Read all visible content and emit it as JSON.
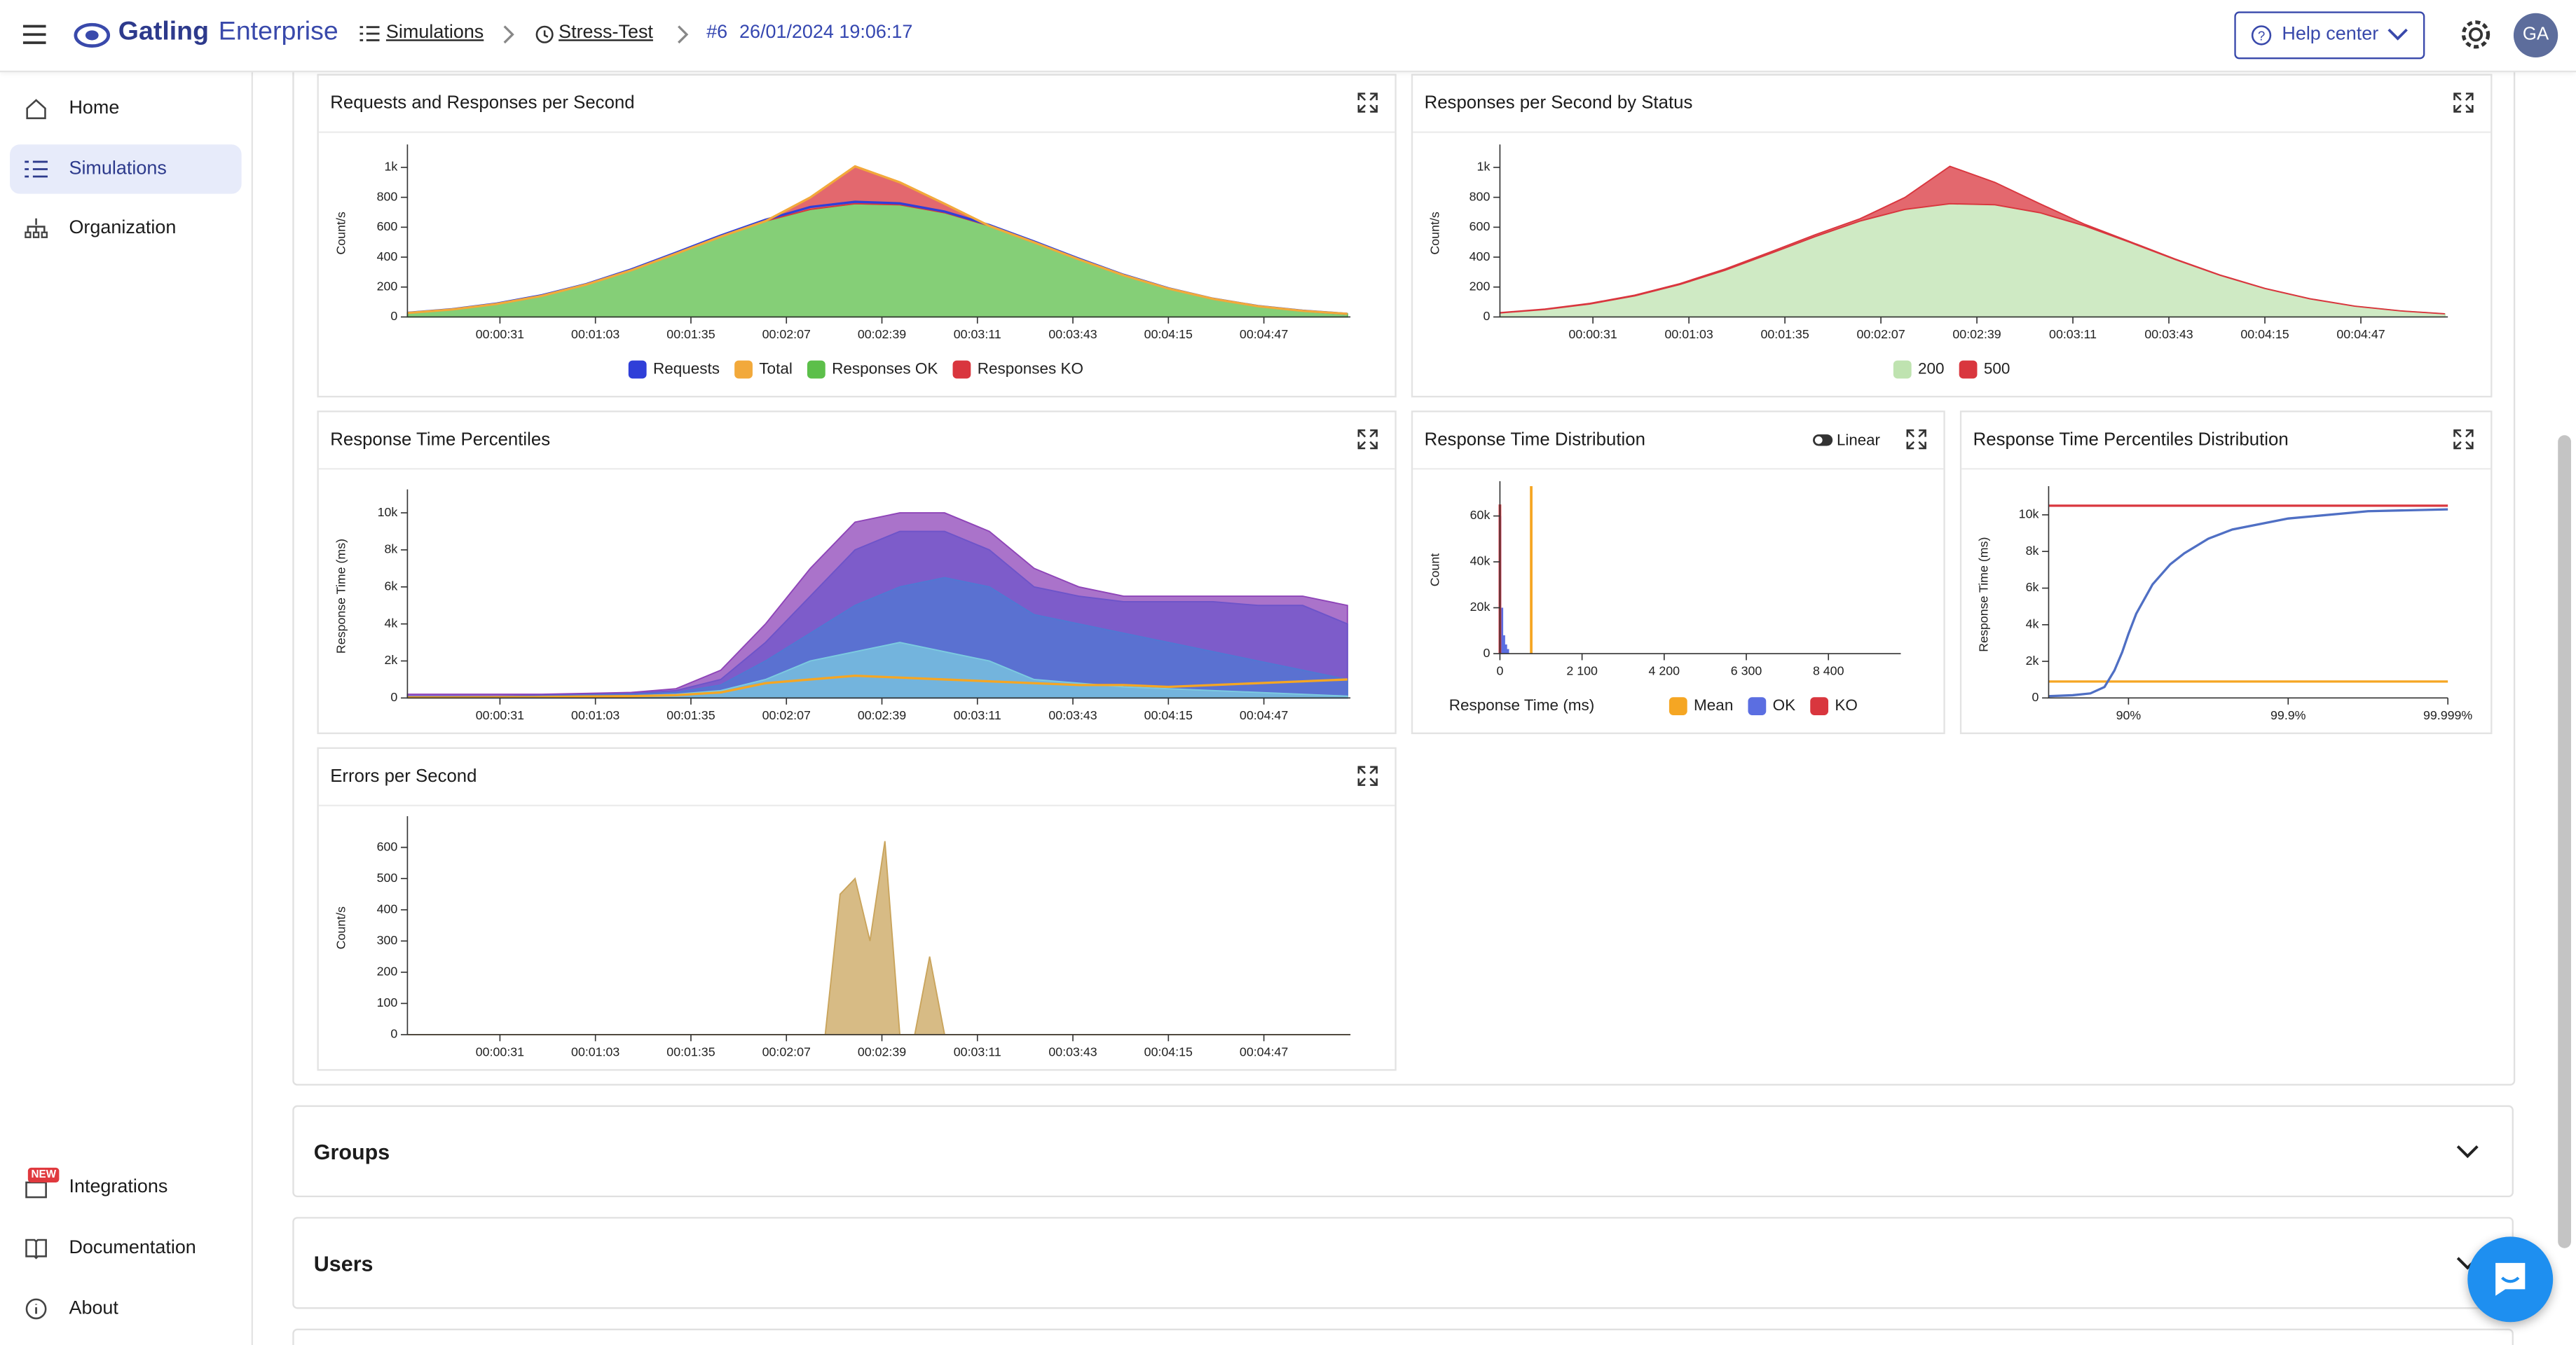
{
  "ui": {
    "header": {
      "brand_name": "Gatling",
      "brand_product": "Enterprise",
      "breadcrumb_simulations": "Simulations",
      "breadcrumb_test": "Stress-Test",
      "run": "#6",
      "run_date": "26/01/2024 19:06:17",
      "help": "Help center",
      "avatar": "GA"
    },
    "sidebar": {
      "home": "Home",
      "simulations": "Simulations",
      "organization": "Organization",
      "badge": "NEW",
      "integrations": "Integrations",
      "documentation": "Documentation",
      "about": "About"
    },
    "toggle": "Linear",
    "sections": [
      "Groups",
      "Users"
    ]
  },
  "chart_data": [
    {
      "type": "area",
      "title": "Requests and Responses per Second",
      "ylabel": "Count/s",
      "x": [
        0,
        15,
        30,
        45,
        60,
        75,
        90,
        105,
        120,
        135,
        150,
        165,
        180,
        195,
        210,
        225,
        240,
        255,
        270,
        285,
        300,
        315
      ],
      "xlim": [
        0,
        316
      ],
      "xticks": [
        {
          "value": 31,
          "label": "00:00:31"
        },
        {
          "value": 63,
          "label": "00:01:03"
        },
        {
          "value": 95,
          "label": "00:01:35"
        },
        {
          "value": 127,
          "label": "00:02:07"
        },
        {
          "value": 159,
          "label": "00:02:39"
        },
        {
          "value": 191,
          "label": "00:03:11"
        },
        {
          "value": 223,
          "label": "00:03:43"
        },
        {
          "value": 255,
          "label": "00:04:15"
        },
        {
          "value": 287,
          "label": "00:04:47"
        }
      ],
      "ylim": [
        0,
        1120
      ],
      "yticks": [
        0,
        200,
        400,
        600,
        800,
        {
          "value": 1000,
          "label": "1k"
        }
      ],
      "series": [
        {
          "name": "Requests",
          "color": "#2f3fd8",
          "style": "line",
          "values": [
            28,
            52,
            90,
            145,
            220,
            318,
            430,
            545,
            650,
            735,
            770,
            760,
            705,
            615,
            505,
            390,
            282,
            192,
            122,
            73,
            42,
            21
          ]
        },
        {
          "name": "Total",
          "color": "#f2a93b",
          "style": "line",
          "values": [
            27,
            50,
            87,
            141,
            217,
            312,
            423,
            537,
            641,
            799,
            1007,
            900,
            757,
            609,
            499,
            385,
            279,
            190,
            121,
            72,
            41,
            21
          ]
        },
        {
          "name": "Responses OK",
          "color": "#5cbf4a",
          "style": "area",
          "values": [
            27,
            50,
            87,
            141,
            217,
            312,
            423,
            537,
            641,
            719,
            757,
            750,
            697,
            609,
            499,
            385,
            279,
            190,
            121,
            72,
            41,
            21
          ]
        },
        {
          "name": "Responses KO",
          "color": "#d9363e",
          "style": "stacked-area",
          "values": [
            0,
            0,
            0,
            0,
            0,
            0,
            0,
            0,
            0,
            80,
            250,
            150,
            60,
            0,
            0,
            0,
            0,
            0,
            0,
            0,
            0,
            0
          ]
        }
      ]
    },
    {
      "type": "area",
      "title": "Responses per Second by Status",
      "ylabel": "Count/s",
      "x": [
        0,
        15,
        30,
        45,
        60,
        75,
        90,
        105,
        120,
        135,
        150,
        165,
        180,
        195,
        210,
        225,
        240,
        255,
        270,
        285,
        300,
        315
      ],
      "xlim": [
        0,
        316
      ],
      "xticks": [
        {
          "value": 31,
          "label": "00:00:31"
        },
        {
          "value": 63,
          "label": "00:01:03"
        },
        {
          "value": 95,
          "label": "00:01:35"
        },
        {
          "value": 127,
          "label": "00:02:07"
        },
        {
          "value": 159,
          "label": "00:02:39"
        },
        {
          "value": 191,
          "label": "00:03:11"
        },
        {
          "value": 223,
          "label": "00:03:43"
        },
        {
          "value": 255,
          "label": "00:04:15"
        },
        {
          "value": 287,
          "label": "00:04:47"
        }
      ],
      "ylim": [
        0,
        1120
      ],
      "yticks": [
        0,
        200,
        400,
        600,
        800,
        {
          "value": 1000,
          "label": "1k"
        }
      ],
      "series": [
        {
          "name": "200",
          "color": "#bfe3b0",
          "style": "area",
          "values": [
            27,
            50,
            87,
            141,
            217,
            312,
            423,
            537,
            641,
            719,
            757,
            750,
            697,
            609,
            499,
            385,
            279,
            190,
            121,
            72,
            41,
            21
          ]
        },
        {
          "name": "500",
          "color": "#d9363e",
          "style": "stacked-area",
          "values": [
            2,
            3,
            4,
            5,
            6,
            8,
            10,
            12,
            15,
            80,
            250,
            150,
            60,
            10,
            5,
            3,
            2,
            1,
            1,
            0,
            0,
            0
          ]
        }
      ]
    },
    {
      "type": "area",
      "title": "Response Time Percentiles",
      "ylabel": "Response Time (ms)",
      "x": [
        0,
        15,
        30,
        45,
        60,
        75,
        90,
        105,
        120,
        135,
        150,
        165,
        180,
        195,
        210,
        225,
        240,
        255,
        270,
        285,
        300,
        315
      ],
      "xlim": [
        0,
        316
      ],
      "xticks": [
        {
          "value": 31,
          "label": "00:00:31"
        },
        {
          "value": 63,
          "label": "00:01:03"
        },
        {
          "value": 95,
          "label": "00:01:35"
        },
        {
          "value": 127,
          "label": "00:02:07"
        },
        {
          "value": 159,
          "label": "00:02:39"
        },
        {
          "value": 191,
          "label": "00:03:11"
        },
        {
          "value": 223,
          "label": "00:03:43"
        },
        {
          "value": 255,
          "label": "00:04:15"
        },
        {
          "value": 287,
          "label": "00:04:47"
        }
      ],
      "ylim": [
        0,
        11000
      ],
      "yticks": [
        0,
        {
          "value": 2000,
          "label": "2k"
        },
        {
          "value": 4000,
          "label": "4k"
        },
        {
          "value": 6000,
          "label": "6k"
        },
        {
          "value": 8000,
          "label": "8k"
        },
        {
          "value": 10000,
          "label": "10k"
        }
      ],
      "series": [
        {
          "color": "#8e44b8",
          "style": "area",
          "values": [
            200,
            200,
            200,
            200,
            250,
            300,
            500,
            1500,
            4000,
            7000,
            9500,
            10000,
            10000,
            9000,
            7000,
            6000,
            5500,
            5500,
            5500,
            5500,
            5500,
            5000
          ]
        },
        {
          "color": "#6d54c9",
          "style": "area",
          "values": [
            100,
            100,
            100,
            150,
            200,
            250,
            400,
            1000,
            3000,
            5500,
            8000,
            9000,
            9000,
            8000,
            6000,
            5500,
            5200,
            5200,
            5200,
            5000,
            5000,
            4000
          ]
        },
        {
          "color": "#4f78d3",
          "style": "area",
          "values": [
            80,
            80,
            80,
            100,
            150,
            200,
            300,
            700,
            2000,
            3500,
            5000,
            6000,
            6500,
            6000,
            4500,
            4000,
            3500,
            3000,
            2500,
            2000,
            1500,
            1000
          ]
        },
        {
          "color": "#7ccbe0",
          "style": "area",
          "values": [
            50,
            50,
            50,
            80,
            100,
            120,
            200,
            400,
            1000,
            2000,
            2500,
            3000,
            2500,
            2000,
            1000,
            800,
            600,
            500,
            400,
            300,
            200,
            100
          ]
        },
        {
          "color": "#f5a623",
          "style": "line",
          "values": [
            30,
            30,
            40,
            50,
            80,
            100,
            150,
            300,
            800,
            1000,
            1200,
            1100,
            1000,
            900,
            800,
            700,
            700,
            600,
            700,
            800,
            900,
            1000
          ]
        }
      ]
    },
    {
      "type": "histogram",
      "title": "Response Time Distribution",
      "ylabel": "Count",
      "xlabel": "Response Time (ms)",
      "xlim": [
        0,
        10250
      ],
      "xticks": [
        0,
        {
          "value": 2100,
          "label": "2 100"
        },
        {
          "value": 4200,
          "label": "4 200"
        },
        {
          "value": 6300,
          "label": "6 300"
        },
        {
          "value": 8400,
          "label": "8 400"
        }
      ],
      "ylim": [
        0,
        73000
      ],
      "yticks": [
        0,
        {
          "value": 20000,
          "label": "20k"
        },
        {
          "value": 40000,
          "label": "40k"
        },
        {
          "value": 60000,
          "label": "60k"
        }
      ],
      "series": [
        {
          "name": "Mean",
          "color": "#f5a623",
          "x": [
            800
          ],
          "values": [
            73000
          ]
        },
        {
          "name": "OK",
          "color": "#5b6ee1",
          "x": [
            0,
            50,
            100,
            150,
            200
          ],
          "values": [
            60000,
            20000,
            8000,
            4000,
            2000
          ]
        },
        {
          "name": "KO",
          "color": "#d9363e",
          "x": [
            0
          ],
          "values": [
            65000
          ]
        }
      ]
    },
    {
      "type": "line",
      "title": "Response Time Percentiles Distribution",
      "ylabel": "Response Time (ms)",
      "xscale": "nines",
      "xlim": [
        0,
        99.999
      ],
      "xticks": [
        {
          "value": 90,
          "label": "90%"
        },
        {
          "value": 99.9,
          "label": "99.9%"
        },
        {
          "value": 99.999,
          "label": "99.999%"
        }
      ],
      "ylim": [
        0,
        11300
      ],
      "yticks": [
        0,
        {
          "value": 2000,
          "label": "2k"
        },
        {
          "value": 4000,
          "label": "4k"
        },
        {
          "value": 6000,
          "label": "6k"
        },
        {
          "value": 8000,
          "label": "8k"
        },
        {
          "value": 10000,
          "label": "10k"
        }
      ],
      "series": [
        {
          "color": "#d9363e",
          "style": "line",
          "x": [
            0,
            99.999
          ],
          "values": [
            10500,
            10500
          ]
        },
        {
          "color": "#f5a623",
          "style": "line",
          "x": [
            0,
            99.999
          ],
          "values": [
            900,
            900
          ]
        },
        {
          "color": "#4f6fc4",
          "style": "line",
          "x": [
            0,
            50,
            70,
            80,
            85,
            88,
            90,
            92,
            95,
            97,
            98,
            99,
            99.5,
            99.9,
            99.99,
            99.999
          ],
          "values": [
            100,
            150,
            250,
            600,
            1500,
            2500,
            3500,
            4600,
            6200,
            7300,
            7900,
            8700,
            9200,
            9800,
            10200,
            10300
          ]
        }
      ]
    },
    {
      "type": "area",
      "title": "Errors per Second",
      "ylabel": "Count/s",
      "x": [
        0,
        140,
        145,
        150,
        155,
        160,
        165,
        170,
        175,
        180,
        185,
        316
      ],
      "xlim": [
        0,
        316
      ],
      "xticks": [
        {
          "value": 31,
          "label": "00:00:31"
        },
        {
          "value": 63,
          "label": "00:01:03"
        },
        {
          "value": 95,
          "label": "00:01:35"
        },
        {
          "value": 127,
          "label": "00:02:07"
        },
        {
          "value": 159,
          "label": "00:02:39"
        },
        {
          "value": 191,
          "label": "00:03:11"
        },
        {
          "value": 223,
          "label": "00:03:43"
        },
        {
          "value": 255,
          "label": "00:04:15"
        },
        {
          "value": 287,
          "label": "00:04:47"
        }
      ],
      "ylim": [
        0,
        684
      ],
      "yticks": [
        0,
        100,
        200,
        300,
        400,
        500,
        600
      ],
      "series": [
        {
          "color": "#c9a45c",
          "style": "area",
          "values": [
            0,
            0,
            450,
            500,
            300,
            620,
            0,
            0,
            250,
            0,
            0,
            0
          ]
        }
      ]
    }
  ]
}
